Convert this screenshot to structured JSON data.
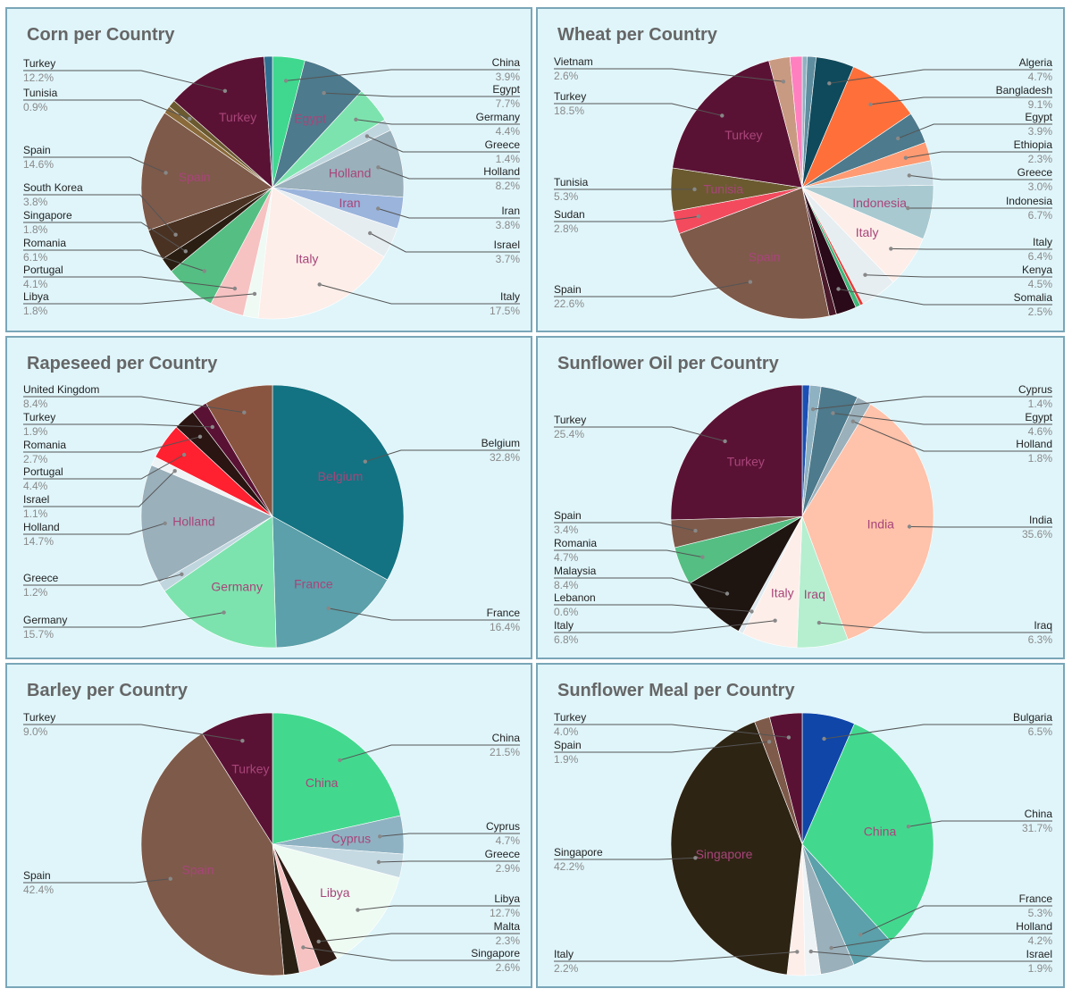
{
  "chart_data": [
    {
      "type": "pie",
      "title": "Corn per Country",
      "slices": [
        {
          "label": "China",
          "value": 3.9,
          "pct": "3.9%",
          "color": "#3fd88e",
          "side": "right",
          "ly": 70
        },
        {
          "label": "Egypt",
          "value": 7.7,
          "pct": "7.7%",
          "color": "#4d7a8c",
          "side": "right",
          "ly": 100,
          "inner": "Egypt"
        },
        {
          "label": "Germany",
          "value": 4.4,
          "pct": "4.4%",
          "color": "#7de3ae",
          "side": "right",
          "ly": 131
        },
        {
          "label": "Greece",
          "value": 1.4,
          "pct": "1.4%",
          "color": "#c0d6df",
          "side": "right",
          "ly": 162
        },
        {
          "label": "Holland",
          "value": 8.2,
          "pct": "8.2%",
          "color": "#9ab0bb",
          "side": "right",
          "ly": 192,
          "inner": "Holland"
        },
        {
          "label": "Iran",
          "value": 3.8,
          "pct": "3.8%",
          "color": "#9ab4dc",
          "side": "right",
          "ly": 236,
          "inner": "Iran"
        },
        {
          "label": "Israel",
          "value": 3.7,
          "pct": "3.7%",
          "color": "#e6edf1",
          "side": "right",
          "ly": 274
        },
        {
          "label": "Italy",
          "value": 17.5,
          "pct": "17.5%",
          "color": "#fdeee9",
          "side": "right",
          "ly": 332,
          "inner": "Italy"
        },
        {
          "label": "Libya",
          "value": 1.8,
          "pct": "1.8%",
          "color": "#effaf4",
          "side": "left",
          "ly": 332
        },
        {
          "label": "Portugal",
          "value": 4.1,
          "pct": "4.1%",
          "color": "#f6c2c2",
          "side": "left",
          "ly": 302
        },
        {
          "label": "Romania",
          "value": 6.1,
          "pct": "6.1%",
          "color": "#55be83",
          "side": "left",
          "ly": 272
        },
        {
          "label": "Singapore",
          "value": 1.8,
          "pct": "1.8%",
          "color": "#2a1e12",
          "side": "left",
          "ly": 241
        },
        {
          "label": "South Korea",
          "value": 3.8,
          "pct": "3.8%",
          "color": "#4a3222",
          "side": "left",
          "ly": 210
        },
        {
          "label": "Spain",
          "value": 14.6,
          "pct": "14.6%",
          "color": "#7e5a4a",
          "side": "left",
          "ly": 168,
          "inner": "Spain"
        },
        {
          "label": "",
          "value": 0.9,
          "pct": "",
          "color": "#8a6a3a",
          "side": "none"
        },
        {
          "label": "Tunisia",
          "value": 0.9,
          "pct": "0.9%",
          "color": "#6b5a30",
          "side": "left",
          "ly": 104
        },
        {
          "label": "Turkey",
          "value": 12.2,
          "pct": "12.2%",
          "color": "#5a1234",
          "side": "left",
          "ly": 71,
          "inner": "Turkey"
        },
        {
          "label": "",
          "value": 1.0,
          "pct": "",
          "color": "#2e6e90",
          "side": "none"
        }
      ]
    },
    {
      "type": "pie",
      "title": "Wheat per Country",
      "slices": [
        {
          "label": "",
          "value": 0.6,
          "pct": "",
          "color": "#8fb2c2",
          "side": "none"
        },
        {
          "label": "",
          "value": 1.1,
          "pct": "",
          "color": "#5f8ea0",
          "side": "none"
        },
        {
          "label": "Algeria",
          "value": 4.7,
          "pct": "4.7%",
          "color": "#0f4a5c",
          "side": "right",
          "ly": 70
        },
        {
          "label": "Bangladesh",
          "value": 9.1,
          "pct": "9.1%",
          "color": "#ff6f3a",
          "side": "right",
          "ly": 101
        },
        {
          "label": "Egypt",
          "value": 3.9,
          "pct": "3.9%",
          "color": "#4d7a8c",
          "side": "right",
          "ly": 131
        },
        {
          "label": "Ethiopia",
          "value": 2.3,
          "pct": "2.3%",
          "color": "#ff9a72",
          "side": "right",
          "ly": 162
        },
        {
          "label": "Greece",
          "value": 3.0,
          "pct": "3.0%",
          "color": "#c5d9e2",
          "side": "right",
          "ly": 193
        },
        {
          "label": "Indonesia",
          "value": 6.7,
          "pct": "6.7%",
          "color": "#a8c9d0",
          "side": "right",
          "ly": 225,
          "inner": "Indonesia"
        },
        {
          "label": "Italy",
          "value": 6.4,
          "pct": "6.4%",
          "color": "#fdeee9",
          "side": "right",
          "ly": 271,
          "inner": "Italy"
        },
        {
          "label": "Kenya",
          "value": 4.5,
          "pct": "4.5%",
          "color": "#e7eef2",
          "side": "right",
          "ly": 302
        },
        {
          "label": "",
          "value": 0.4,
          "pct": "",
          "color": "#e83a3a",
          "side": "none"
        },
        {
          "label": "",
          "value": 0.6,
          "pct": "",
          "color": "#3fb87a",
          "side": "none"
        },
        {
          "label": "Somalia",
          "value": 2.5,
          "pct": "2.5%",
          "color": "#2a0a18",
          "side": "right",
          "ly": 333
        },
        {
          "label": "",
          "value": 0.9,
          "pct": "",
          "color": "#4a1a2a",
          "side": "none"
        },
        {
          "label": "Spain",
          "value": 22.6,
          "pct": "22.6%",
          "color": "#7e5a4a",
          "side": "left",
          "ly": 324,
          "inner": "Spain"
        },
        {
          "label": "Sudan",
          "value": 2.8,
          "pct": "2.8%",
          "color": "#f34a5e",
          "side": "left",
          "ly": 240
        },
        {
          "label": "Tunisia",
          "value": 5.3,
          "pct": "5.3%",
          "color": "#6b5a30",
          "side": "left",
          "ly": 204,
          "inner": "Tunisia"
        },
        {
          "label": "Turkey",
          "value": 18.5,
          "pct": "18.5%",
          "color": "#5a1234",
          "side": "left",
          "ly": 108,
          "inner": "Turkey"
        },
        {
          "label": "Vietnam",
          "value": 2.6,
          "pct": "2.6%",
          "color": "#c99a82",
          "side": "left",
          "ly": 69
        },
        {
          "label": "",
          "value": 1.5,
          "pct": "",
          "color": "#ff7fbf",
          "side": "none"
        }
      ]
    },
    {
      "type": "pie",
      "title": "Rapeseed per Country",
      "slices": [
        {
          "label": "Belgium",
          "value": 32.8,
          "pct": "32.8%",
          "color": "#137382",
          "side": "right",
          "ly": 496,
          "inner": "Belgium"
        },
        {
          "label": "France",
          "value": 16.4,
          "pct": "16.4%",
          "color": "#5ba0aa",
          "side": "right",
          "ly": 686,
          "inner": "France"
        },
        {
          "label": "Germany",
          "value": 15.7,
          "pct": "15.7%",
          "color": "#7de3ae",
          "side": "left",
          "ly": 694,
          "inner": "Germany"
        },
        {
          "label": "Greece",
          "value": 1.2,
          "pct": "1.2%",
          "color": "#c0d6df",
          "side": "left",
          "ly": 647
        },
        {
          "label": "Holland",
          "value": 14.7,
          "pct": "14.7%",
          "color": "#9ab0bb",
          "side": "left",
          "ly": 590,
          "inner": "Holland"
        },
        {
          "label": "Israel",
          "value": 1.1,
          "pct": "1.1%",
          "color": "#eef3f6",
          "side": "left",
          "ly": 559
        },
        {
          "label": "Portugal",
          "value": 4.4,
          "pct": "4.4%",
          "color": "#ff2030",
          "side": "left",
          "ly": 528
        },
        {
          "label": "Romania",
          "value": 2.7,
          "pct": "2.7%",
          "color": "#2a1512",
          "side": "left",
          "ly": 498
        },
        {
          "label": "Turkey",
          "value": 1.9,
          "pct": "1.9%",
          "color": "#5a1234",
          "side": "left",
          "ly": 467
        },
        {
          "label": "United Kingdom",
          "value": 8.4,
          "pct": "8.4%",
          "color": "#8a5540",
          "side": "left",
          "ly": 436
        }
      ]
    },
    {
      "type": "pie",
      "title": "Sunflower Oil per Country",
      "slices": [
        {
          "label": "",
          "value": 0.9,
          "pct": "",
          "color": "#1a4fb5",
          "side": "none"
        },
        {
          "label": "Cyprus",
          "value": 1.4,
          "pct": "1.4%",
          "color": "#8fb2c2",
          "side": "right",
          "ly": 436
        },
        {
          "label": "Egypt",
          "value": 4.6,
          "pct": "4.6%",
          "color": "#4d7a8c",
          "side": "right",
          "ly": 467
        },
        {
          "label": "Holland",
          "value": 1.8,
          "pct": "1.8%",
          "color": "#9ab0bb",
          "side": "right",
          "ly": 497
        },
        {
          "label": "India",
          "value": 35.6,
          "pct": "35.6%",
          "color": "#ffc2aa",
          "side": "right",
          "ly": 582,
          "inner": "India"
        },
        {
          "label": "Iraq",
          "value": 6.3,
          "pct": "6.3%",
          "color": "#b5efd0",
          "side": "right",
          "ly": 700,
          "inner": "Iraq"
        },
        {
          "label": "Italy",
          "value": 6.8,
          "pct": "6.8%",
          "color": "#fdeee9",
          "side": "left",
          "ly": 700,
          "inner": "Italy"
        },
        {
          "label": "Lebanon",
          "value": 0.6,
          "pct": "0.6%",
          "color": "#dfeaf0",
          "side": "left",
          "ly": 669
        },
        {
          "label": "Malaysia",
          "value": 8.4,
          "pct": "8.4%",
          "color": "#1e1410",
          "side": "left",
          "ly": 639
        },
        {
          "label": "Romania",
          "value": 4.7,
          "pct": "4.7%",
          "color": "#55be83",
          "side": "left",
          "ly": 608
        },
        {
          "label": "Spain",
          "value": 3.4,
          "pct": "3.4%",
          "color": "#7e5a4a",
          "side": "left",
          "ly": 577
        },
        {
          "label": "Turkey",
          "value": 25.4,
          "pct": "25.4%",
          "color": "#5a1234",
          "side": "left",
          "ly": 470,
          "inner": "Turkey"
        }
      ]
    },
    {
      "type": "pie",
      "title": "Barley per Country",
      "slices": [
        {
          "label": "China",
          "value": 21.5,
          "pct": "21.5%",
          "color": "#42d98f",
          "side": "right",
          "ly": 826,
          "inner": "China"
        },
        {
          "label": "Cyprus",
          "value": 4.7,
          "pct": "4.7%",
          "color": "#8fb2c2",
          "side": "right",
          "ly": 925,
          "inner": "Cyprus"
        },
        {
          "label": "Greece",
          "value": 2.9,
          "pct": "2.9%",
          "color": "#c5d9e2",
          "side": "right",
          "ly": 956
        },
        {
          "label": "Libya",
          "value": 12.7,
          "pct": "12.7%",
          "color": "#eefbf3",
          "side": "right",
          "ly": 1006,
          "inner": "Libya"
        },
        {
          "label": "Malta",
          "value": 2.3,
          "pct": "2.3%",
          "color": "#2e1c14",
          "side": "right",
          "ly": 1037
        },
        {
          "label": "Singapore",
          "value": 2.6,
          "pct": "2.6%",
          "color": "#f6c2c2",
          "side": "right",
          "ly": 1067
        },
        {
          "label": "",
          "value": 1.9,
          "pct": "",
          "color": "#2a2014",
          "side": "none"
        },
        {
          "label": "Spain",
          "value": 42.4,
          "pct": "42.4%",
          "color": "#7e5a4a",
          "side": "left",
          "ly": 980,
          "inner": "Spain"
        },
        {
          "label": "Turkey",
          "value": 9.0,
          "pct": "9.0%",
          "color": "#5a1234",
          "side": "left",
          "ly": 803,
          "inner": "Turkey"
        }
      ]
    },
    {
      "type": "pie",
      "title": "Sunflower Meal per Country",
      "slices": [
        {
          "label": "Bulgaria",
          "value": 6.5,
          "pct": "6.5%",
          "color": "#0f46a8",
          "side": "right",
          "ly": 803
        },
        {
          "label": "China",
          "value": 31.7,
          "pct": "31.7%",
          "color": "#42d98f",
          "side": "right",
          "ly": 911,
          "inner": "China"
        },
        {
          "label": "France",
          "value": 5.3,
          "pct": "5.3%",
          "color": "#5ba0aa",
          "side": "right",
          "ly": 1006
        },
        {
          "label": "Holland",
          "value": 4.2,
          "pct": "4.2%",
          "color": "#9ab0bb",
          "side": "right",
          "ly": 1037
        },
        {
          "label": "Israel",
          "value": 1.9,
          "pct": "1.9%",
          "color": "#eef3f6",
          "side": "right",
          "ly": 1068
        },
        {
          "label": "Italy",
          "value": 2.2,
          "pct": "2.2%",
          "color": "#fdeee9",
          "side": "left",
          "ly": 1068
        },
        {
          "label": "Singapore",
          "value": 42.2,
          "pct": "42.2%",
          "color": "#2e2414",
          "side": "left",
          "ly": 954,
          "inner": "Singapore"
        },
        {
          "label": "Spain",
          "value": 1.9,
          "pct": "1.9%",
          "color": "#7e5a4a",
          "side": "left",
          "ly": 834
        },
        {
          "label": "Turkey",
          "value": 4.0,
          "pct": "4.0%",
          "color": "#5a1234",
          "side": "left",
          "ly": 803
        }
      ]
    }
  ]
}
